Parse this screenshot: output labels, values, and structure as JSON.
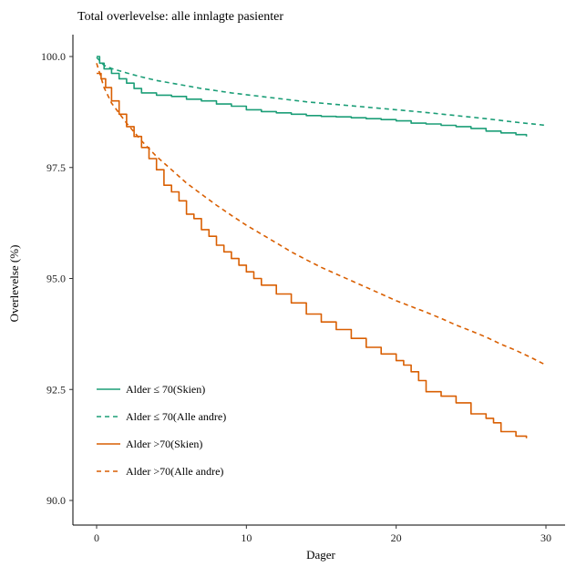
{
  "chart_data": {
    "type": "line",
    "title": "Total overlevelse: alle innlagte pasienter",
    "xlabel": "Dager",
    "ylabel": "Overlevelse (%)",
    "xlim": [
      0,
      30
    ],
    "ylim": [
      90.0,
      100.0
    ],
    "x_ticks": [
      0,
      10,
      20,
      30
    ],
    "y_ticks": [
      90.0,
      92.5,
      95.0,
      97.5,
      100.0
    ],
    "x_tick_labels": [
      "0",
      "10",
      "20",
      "30"
    ],
    "y_tick_labels": [
      "90.0",
      "92.5",
      "95.0",
      "97.5",
      "100.0"
    ],
    "grid": false,
    "legend_position": "bottom-left",
    "series": [
      {
        "name": "Alder ≤ 70(Skien)",
        "color": "#1b9e77",
        "dash": "solid",
        "step": true,
        "x": [
          0,
          0.2,
          0.5,
          1,
          1.5,
          2,
          2.5,
          3,
          4,
          5,
          6,
          7,
          8,
          9,
          10,
          11,
          12,
          13,
          14,
          15,
          16,
          17,
          18,
          19,
          20,
          21,
          22,
          23,
          24,
          25,
          26,
          27,
          28,
          28.7
        ],
        "y": [
          100.0,
          99.85,
          99.72,
          99.62,
          99.5,
          99.4,
          99.28,
          99.18,
          99.13,
          99.1,
          99.04,
          99.0,
          98.93,
          98.88,
          98.8,
          98.76,
          98.73,
          98.7,
          98.67,
          98.65,
          98.64,
          98.62,
          98.6,
          98.58,
          98.55,
          98.5,
          98.48,
          98.45,
          98.42,
          98.38,
          98.32,
          98.28,
          98.24,
          98.2
        ]
      },
      {
        "name": "Alder ≤ 70(Alle andre)",
        "color": "#1b9e77",
        "dash": "dashed",
        "step": false,
        "x": [
          0,
          0.5,
          1,
          2,
          3,
          4,
          5,
          6,
          7,
          8,
          9,
          10,
          12,
          14,
          16,
          18,
          20,
          22,
          24,
          26,
          28,
          30
        ],
        "y": [
          99.98,
          99.8,
          99.73,
          99.63,
          99.54,
          99.46,
          99.4,
          99.34,
          99.28,
          99.23,
          99.18,
          99.14,
          99.06,
          98.98,
          98.92,
          98.86,
          98.8,
          98.74,
          98.67,
          98.6,
          98.52,
          98.45
        ]
      },
      {
        "name": "Alder >70(Skien)",
        "color": "#d95f02",
        "dash": "solid",
        "step": true,
        "x": [
          0,
          0.3,
          0.6,
          1,
          1.5,
          2,
          2.5,
          3,
          3.5,
          4,
          4.5,
          5,
          5.5,
          6,
          6.5,
          7,
          7.5,
          8,
          8.5,
          9,
          9.5,
          10,
          10.5,
          11,
          12,
          13,
          14,
          15,
          16,
          17,
          18,
          19,
          20,
          20.5,
          21,
          21.5,
          22,
          23,
          24,
          25,
          26,
          26.5,
          27,
          28,
          28.7
        ],
        "y": [
          99.62,
          99.5,
          99.3,
          99.0,
          98.7,
          98.42,
          98.2,
          97.95,
          97.7,
          97.45,
          97.1,
          96.95,
          96.75,
          96.45,
          96.35,
          96.1,
          95.95,
          95.75,
          95.6,
          95.45,
          95.3,
          95.15,
          95.0,
          94.85,
          94.65,
          94.45,
          94.2,
          94.02,
          93.85,
          93.65,
          93.45,
          93.3,
          93.15,
          93.05,
          92.9,
          92.7,
          92.45,
          92.35,
          92.2,
          91.95,
          91.85,
          91.75,
          91.55,
          91.45,
          91.4
        ]
      },
      {
        "name": "Alder >70(Alle andre)",
        "color": "#d95f02",
        "dash": "dashed",
        "step": false,
        "x": [
          0,
          0.5,
          1,
          2,
          3,
          4,
          5,
          6,
          7,
          8,
          9,
          10,
          11,
          12,
          13,
          14,
          15,
          16,
          17,
          18,
          19,
          20,
          21,
          22,
          23,
          24,
          25,
          26,
          27,
          28,
          29,
          30
        ],
        "y": [
          99.85,
          99.3,
          98.95,
          98.5,
          98.1,
          97.75,
          97.45,
          97.15,
          96.9,
          96.65,
          96.42,
          96.2,
          96.0,
          95.8,
          95.6,
          95.42,
          95.25,
          95.1,
          94.95,
          94.8,
          94.65,
          94.5,
          94.37,
          94.24,
          94.1,
          93.95,
          93.82,
          93.68,
          93.52,
          93.38,
          93.22,
          93.05
        ]
      }
    ]
  }
}
